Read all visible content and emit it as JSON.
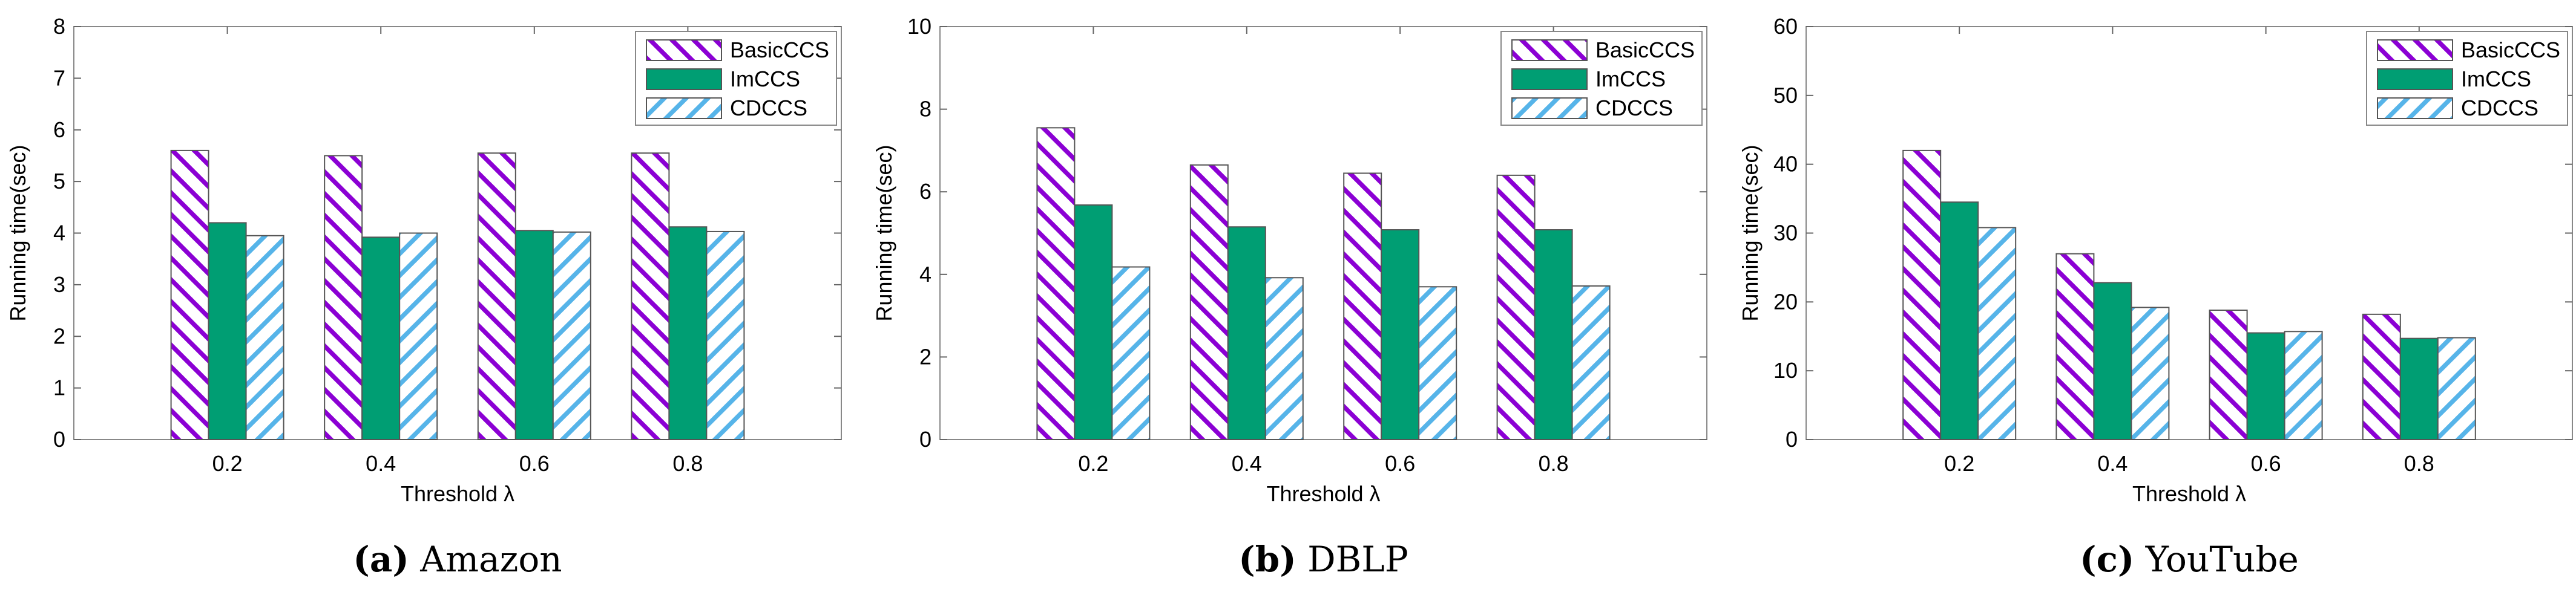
{
  "series_style": {
    "BasicCCS": {
      "color": "#8b00d4",
      "pattern": "backslash"
    },
    "ImCCS": {
      "color": "#009e73",
      "pattern": "solid"
    },
    "CDCCS": {
      "color": "#56b4e9",
      "pattern": "slash"
    }
  },
  "chart_data": [
    {
      "type": "bar",
      "caption_letter": "(a)",
      "caption_text": "Amazon",
      "xlabel": "Threshold λ",
      "ylabel": "Running time(sec)",
      "categories": [
        "0.2",
        "0.4",
        "0.6",
        "0.8"
      ],
      "ylim": [
        0,
        8
      ],
      "yticks": [
        0,
        1,
        2,
        3,
        4,
        5,
        6,
        7,
        8
      ],
      "legend_position": "top-right",
      "series": [
        {
          "name": "BasicCCS",
          "values": [
            5.6,
            5.5,
            5.55,
            5.55
          ]
        },
        {
          "name": "ImCCS",
          "values": [
            4.2,
            3.92,
            4.05,
            4.12
          ]
        },
        {
          "name": "CDCCS",
          "values": [
            3.95,
            4.0,
            4.02,
            4.03
          ]
        }
      ]
    },
    {
      "type": "bar",
      "caption_letter": "(b)",
      "caption_text": "DBLP",
      "xlabel": "Threshold λ",
      "ylabel": "Running time(sec)",
      "categories": [
        "0.2",
        "0.4",
        "0.6",
        "0.8"
      ],
      "ylim": [
        0,
        10
      ],
      "yticks": [
        0,
        2,
        4,
        6,
        8,
        10
      ],
      "legend_position": "top-right",
      "series": [
        {
          "name": "BasicCCS",
          "values": [
            7.55,
            6.65,
            6.45,
            6.4
          ]
        },
        {
          "name": "ImCCS",
          "values": [
            5.68,
            5.15,
            5.08,
            5.08
          ]
        },
        {
          "name": "CDCCS",
          "values": [
            4.18,
            3.92,
            3.7,
            3.72
          ]
        }
      ]
    },
    {
      "type": "bar",
      "caption_letter": "(c)",
      "caption_text": "YouTube",
      "xlabel": "Threshold λ",
      "ylabel": "Running time(sec)",
      "categories": [
        "0.2",
        "0.4",
        "0.6",
        "0.8"
      ],
      "ylim": [
        0,
        60
      ],
      "yticks": [
        0,
        10,
        20,
        30,
        40,
        50,
        60
      ],
      "legend_position": "top-right",
      "series": [
        {
          "name": "BasicCCS",
          "values": [
            42,
            27,
            18.8,
            18.2
          ]
        },
        {
          "name": "ImCCS",
          "values": [
            34.5,
            22.8,
            15.5,
            14.7
          ]
        },
        {
          "name": "CDCCS",
          "values": [
            30.8,
            19.2,
            15.7,
            14.8
          ]
        }
      ]
    }
  ]
}
